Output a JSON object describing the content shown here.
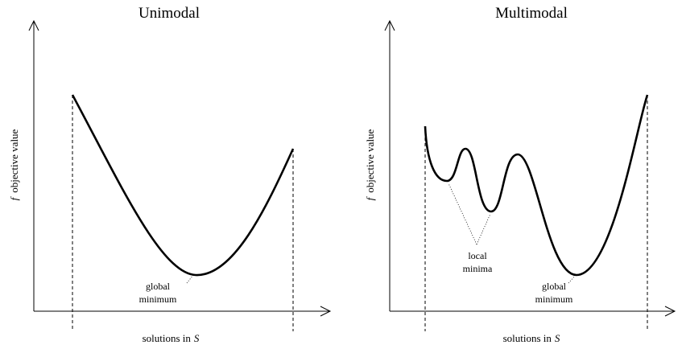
{
  "panels": [
    {
      "title": "Unimodal",
      "y_label": {
        "symbol": "f",
        "text": "objective value"
      },
      "x_label": {
        "text": "solutions in",
        "symbol": "S"
      },
      "annotations": [
        {
          "lines": [
            "global",
            "minimum"
          ]
        }
      ]
    },
    {
      "title": "Multimodal",
      "y_label": {
        "symbol": "f",
        "text": "objective value"
      },
      "x_label": {
        "text": "solutions in",
        "symbol": "S"
      },
      "annotations": [
        {
          "lines": [
            "local",
            "minima"
          ]
        },
        {
          "lines": [
            "global",
            "minimum"
          ]
        }
      ]
    }
  ]
}
